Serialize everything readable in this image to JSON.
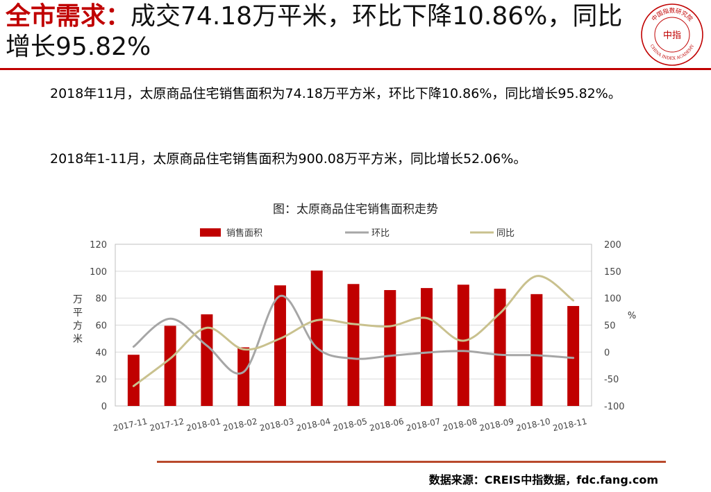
{
  "header": {
    "title_highlight": "全市需求：",
    "title_rest": "成交74.18万平米，环比下降10.86%，同比增长95.82%"
  },
  "logo": {
    "arc_text": "中国指数研究院",
    "center_text": "中指",
    "bottom_text": "CHINA INDEX ACADEMY",
    "color": "#c00000"
  },
  "body": {
    "paragraph1": "2018年11月，太原商品住宅销售面积为74.18万平方米，环比下降10.86%，同比增长95.82%。",
    "paragraph2": "2018年1-11月，太原商品住宅销售面积为900.08万平方米，同比增长52.06%。"
  },
  "chart_caption": "图：太原商品住宅销售面积走势",
  "source": "数据来源：CREIS中指数据，fdc.fang.com",
  "chart_data": {
    "type": "bar",
    "title": "图：太原商品住宅销售面积走势",
    "categories": [
      "2017-11",
      "2017-12",
      "2018-01",
      "2018-02",
      "2018-03",
      "2018-04",
      "2018-05",
      "2018-06",
      "2018-07",
      "2018-08",
      "2018-09",
      "2018-10",
      "2018-11"
    ],
    "ylabel": "万平方米",
    "y2label": "%",
    "ylim": [
      0,
      120
    ],
    "y2lim": [
      -100,
      200
    ],
    "yticks": [
      0,
      20,
      40,
      60,
      80,
      100,
      120
    ],
    "y2ticks": [
      -100,
      -50,
      0,
      50,
      100,
      150,
      200
    ],
    "legend_position": "top",
    "grid": true,
    "series": [
      {
        "name": "销售面积",
        "type": "bar",
        "axis": "left",
        "color": "#c00000",
        "values": [
          38,
          59.5,
          68,
          43.5,
          89.5,
          100.5,
          90.5,
          86,
          87.5,
          90,
          87,
          83,
          74.18
        ]
      },
      {
        "name": "环比",
        "type": "line",
        "axis": "right",
        "color": "#a6a6a6",
        "values": [
          10,
          62,
          12,
          -37,
          104,
          8,
          -12,
          -7,
          -1,
          2,
          -5,
          -6,
          -10.86
        ]
      },
      {
        "name": "同比",
        "type": "line",
        "axis": "right",
        "color": "#c9c18e",
        "values": [
          -63,
          -12,
          45,
          5,
          25,
          59,
          52,
          48,
          63,
          21,
          72,
          141,
          95.82
        ]
      }
    ]
  }
}
